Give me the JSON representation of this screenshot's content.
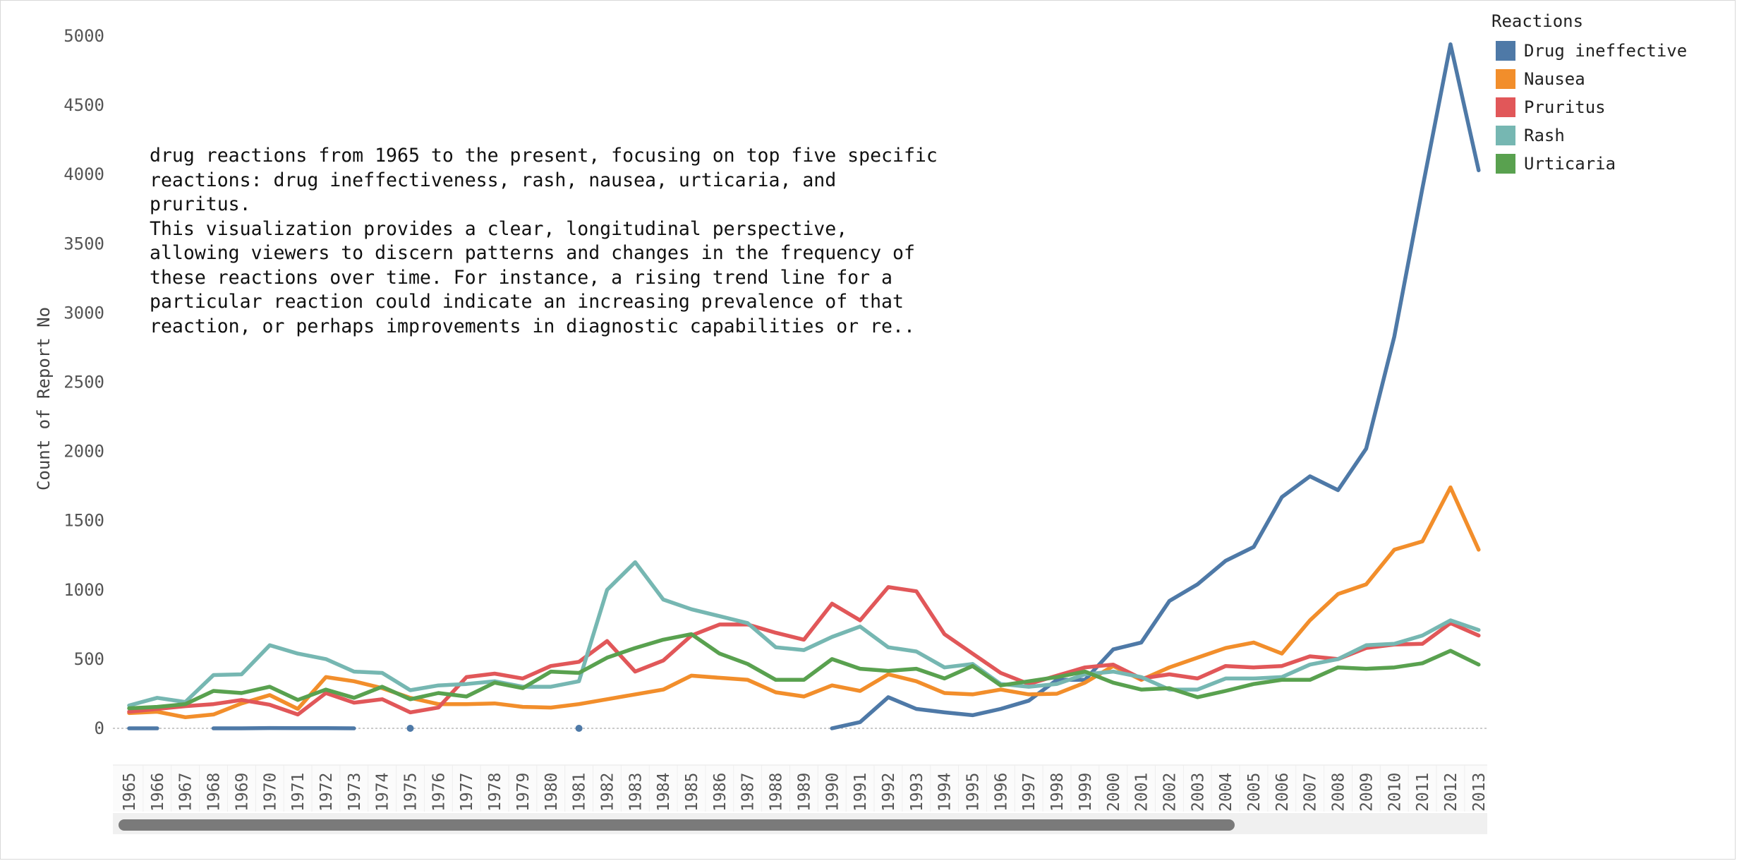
{
  "legend": {
    "title": "Reactions",
    "items": [
      {
        "label": "Drug ineffective",
        "color": "#4e79a7"
      },
      {
        "label": "Nausea",
        "color": "#f28e2b"
      },
      {
        "label": "Pruritus",
        "color": "#e15759"
      },
      {
        "label": "Rash",
        "color": "#76b7b2"
      },
      {
        "label": "Urticaria",
        "color": "#59a14f"
      }
    ]
  },
  "annotation": {
    "paragraph1": "drug reactions from 1965 to the present, focusing on top five specific reactions: drug ineffectiveness, rash, nausea, urticaria, and pruritus.",
    "paragraph2": "This visualization provides a clear, longitudinal perspective, allowing viewers to discern patterns and changes in the frequency of these reactions over time. For instance, a rising trend line for a particular reaction could indicate an increasing prevalence of that reaction, or perhaps improvements in diagnostic capabilities or re.."
  },
  "chart_data": {
    "type": "line",
    "ylabel": "Count of Report No",
    "xlabel": "",
    "ylim": [
      -500,
      5200
    ],
    "yticks": [
      0,
      500,
      1000,
      1500,
      2000,
      2500,
      3000,
      3500,
      4000,
      4500,
      5000
    ],
    "zero_line": true,
    "grid": false,
    "legend_position": "top-right",
    "x": [
      1965,
      1966,
      1967,
      1968,
      1969,
      1970,
      1971,
      1972,
      1973,
      1974,
      1975,
      1976,
      1977,
      1978,
      1979,
      1980,
      1981,
      1982,
      1983,
      1984,
      1985,
      1986,
      1987,
      1988,
      1989,
      1990,
      1991,
      1992,
      1993,
      1994,
      1995,
      1996,
      1997,
      1998,
      1999,
      2000,
      2001,
      2002,
      2003,
      2004,
      2005,
      2006,
      2007,
      2008,
      2009,
      2010,
      2011,
      2012,
      2013
    ],
    "series": [
      {
        "name": "Drug ineffective",
        "color": "#4e79a7",
        "values": [
          0,
          0,
          null,
          0,
          0,
          2,
          1,
          1,
          0,
          null,
          0,
          null,
          null,
          null,
          null,
          null,
          0,
          null,
          null,
          null,
          null,
          null,
          null,
          null,
          null,
          0,
          45,
          225,
          140,
          115,
          95,
          140,
          200,
          350,
          350,
          570,
          620,
          920,
          1040,
          1210,
          1310,
          1670,
          1820,
          1720,
          2020,
          2830,
          3900,
          4940,
          4030
        ]
      },
      {
        "name": "Nausea",
        "color": "#f28e2b",
        "values": [
          110,
          120,
          80,
          100,
          180,
          240,
          140,
          370,
          340,
          290,
          220,
          175,
          175,
          180,
          155,
          150,
          175,
          210,
          245,
          280,
          380,
          365,
          350,
          260,
          230,
          310,
          270,
          390,
          340,
          255,
          245,
          280,
          245,
          250,
          330,
          450,
          350,
          440,
          510,
          580,
          620,
          540,
          780,
          970,
          1040,
          1290,
          1350,
          1740,
          1290
        ]
      },
      {
        "name": "Pruritus",
        "color": "#e15759",
        "values": [
          120,
          140,
          160,
          175,
          205,
          170,
          100,
          255,
          185,
          210,
          115,
          150,
          370,
          395,
          360,
          450,
          480,
          630,
          410,
          490,
          670,
          750,
          750,
          690,
          640,
          900,
          780,
          1020,
          990,
          680,
          540,
          400,
          320,
          380,
          440,
          460,
          360,
          390,
          360,
          450,
          440,
          450,
          520,
          500,
          580,
          605,
          610,
          760,
          670
        ]
      },
      {
        "name": "Rash",
        "color": "#76b7b2",
        "values": [
          165,
          220,
          190,
          385,
          390,
          600,
          540,
          500,
          410,
          400,
          275,
          310,
          320,
          340,
          300,
          300,
          340,
          1000,
          1200,
          930,
          860,
          810,
          760,
          585,
          565,
          660,
          735,
          585,
          555,
          440,
          465,
          320,
          300,
          320,
          390,
          410,
          370,
          280,
          280,
          360,
          360,
          370,
          460,
          500,
          600,
          610,
          670,
          780,
          710
        ]
      },
      {
        "name": "Urticaria",
        "color": "#59a14f",
        "values": [
          145,
          155,
          175,
          270,
          255,
          300,
          205,
          280,
          220,
          300,
          210,
          255,
          230,
          330,
          290,
          410,
          400,
          510,
          580,
          640,
          680,
          540,
          465,
          350,
          350,
          500,
          430,
          415,
          430,
          360,
          450,
          310,
          340,
          370,
          410,
          330,
          280,
          290,
          225,
          270,
          320,
          350,
          350,
          440,
          430,
          440,
          470,
          560,
          460
        ]
      }
    ]
  }
}
